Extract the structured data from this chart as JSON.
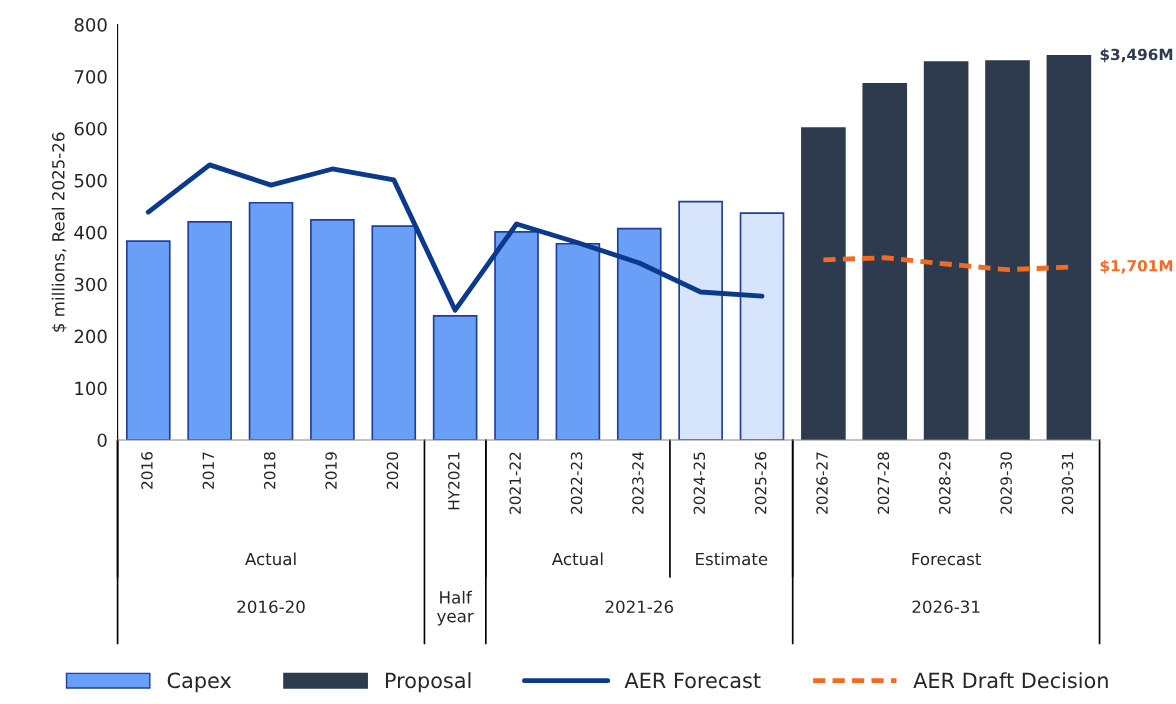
{
  "chart_data": {
    "type": "bar",
    "categories": [
      "2016",
      "2017",
      "2018",
      "2019",
      "2020",
      "HY2021",
      "2021-22",
      "2022-23",
      "2023-24",
      "2024-25",
      "2025-26",
      "2026-27",
      "2027-28",
      "2028-29",
      "2029-30",
      "2030-31"
    ],
    "series": [
      {
        "name": "Capex",
        "color": "#6a9ff7",
        "colors": [
          "#6a9ff7",
          "#6a9ff7",
          "#6a9ff7",
          "#6a9ff7",
          "#6a9ff7",
          "#6a9ff7",
          "#6a9ff7",
          "#6a9ff7",
          "#6a9ff7",
          "#d6e5fc",
          "#d6e5fc",
          null,
          null,
          null,
          null,
          null
        ],
        "values": [
          383,
          420,
          457,
          424,
          412,
          239,
          401,
          378,
          407,
          459,
          437,
          null,
          null,
          null,
          null,
          null
        ]
      },
      {
        "name": "Proposal",
        "color": "#2e3a4e",
        "values": [
          null,
          null,
          null,
          null,
          null,
          null,
          null,
          null,
          null,
          null,
          null,
          601,
          686,
          728,
          730,
          740
        ]
      },
      {
        "name": "AER Forecast",
        "type": "line",
        "color": "#0b3a8c",
        "line_style": "solid",
        "values": [
          439,
          530,
          491,
          522,
          501,
          250,
          416,
          380,
          341,
          285,
          277,
          null,
          null,
          null,
          null,
          null
        ]
      },
      {
        "name": "AER Draft Decision",
        "type": "line",
        "color": "#f26b22",
        "line_style": "dashed",
        "values": [
          null,
          null,
          null,
          null,
          null,
          null,
          null,
          null,
          null,
          null,
          null,
          347,
          351,
          339,
          328,
          333
        ]
      }
    ],
    "ylabel": "$ millions, Real 2025-26",
    "ylim": [
      0,
      800
    ],
    "yticks": [
      0,
      100,
      200,
      300,
      400,
      500,
      600,
      700,
      800
    ],
    "annotations": [
      {
        "text": "$3,496M",
        "x": "2030-31",
        "y": 740
      },
      {
        "text": "$1,701M",
        "x": "2030-31",
        "y": 333
      },
      "Actual",
      "Actual",
      "Estimate",
      "Forecast",
      "2016-20",
      "Half\nyear",
      "2021-26",
      "2026-31"
    ],
    "grid": false,
    "legend": "bottom"
  }
}
